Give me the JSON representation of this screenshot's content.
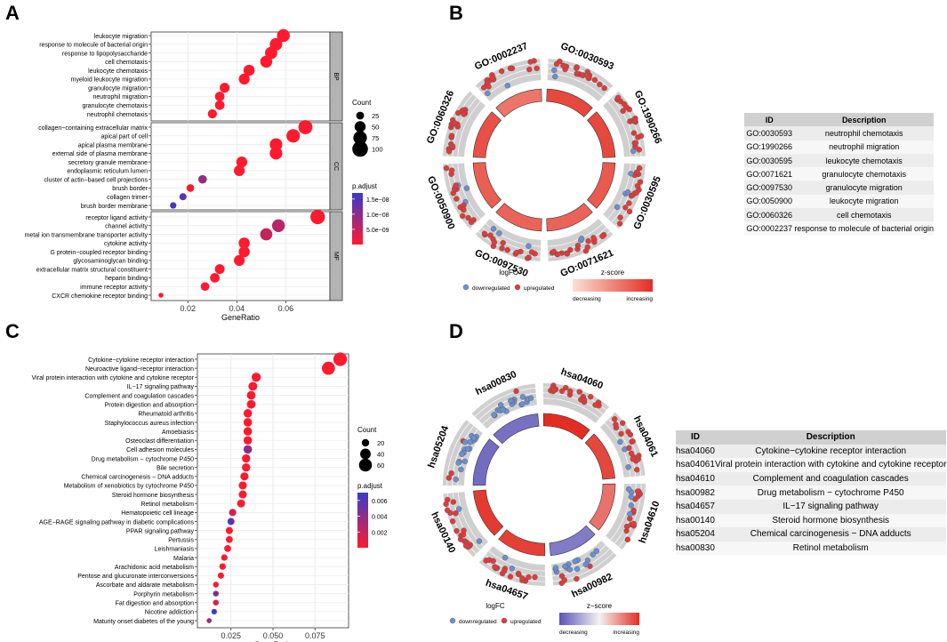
{
  "panels": {
    "A": "A",
    "B": "B",
    "C": "C",
    "D": "D"
  },
  "chart_data": [
    {
      "panel": "A",
      "type": "scatter",
      "subtype": "dotplot",
      "xlabel": "GeneRatio",
      "xlim": [
        0.005,
        0.078
      ],
      "xticks": [
        0.02,
        0.04,
        0.06
      ],
      "xtick_labels": [
        "0.02",
        "0.04",
        "0.06"
      ],
      "facets": [
        {
          "strip": "BP",
          "terms": [
            {
              "label": "leukocyte migration",
              "x": 0.059,
              "count": 68,
              "padj": 1e-13
            },
            {
              "label": "response to molecule of bacterial origin",
              "x": 0.056,
              "count": 64,
              "padj": 1e-13
            },
            {
              "label": "response to lipopolysaccharide",
              "x": 0.054,
              "count": 62,
              "padj": 1e-13
            },
            {
              "label": "cell chemotaxis",
              "x": 0.052,
              "count": 59,
              "padj": 1e-13
            },
            {
              "label": "leukocyte chemotaxis",
              "x": 0.045,
              "count": 51,
              "padj": 1e-13
            },
            {
              "label": "myeloid leukocyte migration",
              "x": 0.043,
              "count": 49,
              "padj": 1e-13
            },
            {
              "label": "granulocyte migration",
              "x": 0.035,
              "count": 40,
              "padj": 1e-13
            },
            {
              "label": "neutrophil migration",
              "x": 0.033,
              "count": 37,
              "padj": 1e-13
            },
            {
              "label": "granulocyte chemotaxis",
              "x": 0.033,
              "count": 37,
              "padj": 1e-13
            },
            {
              "label": "neutrophil chemotaxis",
              "x": 0.03,
              "count": 34,
              "padj": 1e-13
            }
          ]
        },
        {
          "strip": "CC",
          "terms": [
            {
              "label": "collagen−containing extracellular matrix",
              "x": 0.068,
              "count": 80,
              "padj": 1e-12
            },
            {
              "label": "apical part of cell",
              "x": 0.063,
              "count": 74,
              "padj": 1e-12
            },
            {
              "label": "apical plasma membrane",
              "x": 0.056,
              "count": 65,
              "padj": 1e-12
            },
            {
              "label": "external side of plasma membrane",
              "x": 0.056,
              "count": 65,
              "padj": 1e-12
            },
            {
              "label": "secretory granule membrane",
              "x": 0.042,
              "count": 49,
              "padj": 1e-11
            },
            {
              "label": "endoplasmic reticulum lumen",
              "x": 0.041,
              "count": 48,
              "padj": 1e-11
            },
            {
              "label": "cluster of actin−based cell projections",
              "x": 0.026,
              "count": 30,
              "padj": 9e-09
            },
            {
              "label": "brush border",
              "x": 0.021,
              "count": 24,
              "padj": 1e-10
            },
            {
              "label": "collagen trimer",
              "x": 0.018,
              "count": 21,
              "padj": 1.4e-08
            },
            {
              "label": "brush border membrane",
              "x": 0.014,
              "count": 17,
              "padj": 1.6e-08
            }
          ]
        },
        {
          "strip": "MF",
          "terms": [
            {
              "label": "receptor ligand activity",
              "x": 0.073,
              "count": 86,
              "padj": 1e-12
            },
            {
              "label": "channel activity",
              "x": 0.057,
              "count": 67,
              "padj": 6e-09
            },
            {
              "label": "metal ion transmembrane transporter activity",
              "x": 0.052,
              "count": 61,
              "padj": 5e-09
            },
            {
              "label": "cytokine activity",
              "x": 0.043,
              "count": 50,
              "padj": 1e-12
            },
            {
              "label": "G protein−coupled receptor binding",
              "x": 0.043,
              "count": 50,
              "padj": 1e-12
            },
            {
              "label": "glycosaminoglycan binding",
              "x": 0.041,
              "count": 48,
              "padj": 1e-12
            },
            {
              "label": "extracellular matrix structural constituent",
              "x": 0.033,
              "count": 39,
              "padj": 1e-12
            },
            {
              "label": "heparin binding",
              "x": 0.031,
              "count": 37,
              "padj": 1e-12
            },
            {
              "label": "immune receptor activity",
              "x": 0.027,
              "count": 31,
              "padj": 1e-12
            },
            {
              "label": "CXCR chemokine receptor binding",
              "x": 0.009,
              "count": 10,
              "padj": 1e-12
            }
          ]
        }
      ],
      "legend_size": {
        "title": "Count",
        "values": [
          25,
          50,
          75,
          100
        ],
        "labels": [
          "25",
          "50",
          "75",
          "100"
        ]
      },
      "legend_color": {
        "title": "p.adjust",
        "range": [
          0,
          1.7e-08
        ],
        "ticks": [
          1.5e-08,
          1e-08,
          5e-09
        ],
        "labels": [
          "1.5e−08",
          "1.0e−08",
          "5.0e−09"
        ],
        "low_color": "#ff1a2e",
        "high_color": "#3a3acb"
      }
    },
    {
      "panel": "B",
      "type": "circle",
      "subtype": "GOCircle",
      "sectors": [
        {
          "id": "GO:0030593",
          "label": "GO:0030593",
          "zscore": 0.85
        },
        {
          "id": "GO:1990266",
          "label": "GO:1990266",
          "zscore": 0.85
        },
        {
          "id": "GO:0030595",
          "label": "GO:0030595",
          "zscore": 0.75
        },
        {
          "id": "GO:0071621",
          "label": "GO:0071621",
          "zscore": 0.7
        },
        {
          "id": "GO:0097530",
          "label": "GO:0097530",
          "zscore": 0.7
        },
        {
          "id": "GO:0050900",
          "label": "GO:0050900",
          "zscore": 0.72
        },
        {
          "id": "GO:0060326",
          "label": "GO:0060326",
          "zscore": 0.8
        },
        {
          "id": "GO:0002237",
          "label": "GO:0002237",
          "zscore": 0.6
        }
      ],
      "legend_logfc": {
        "title": "logFC",
        "items": [
          "downregulated",
          "upregulated"
        ],
        "colors": [
          "#6b8fd0",
          "#e23a3a"
        ]
      },
      "legend_zscore": {
        "title": "z-score",
        "low_label": "decreasing",
        "high_label": "increasing",
        "low_color": "#fbe0d6",
        "high_color": "#e42d22"
      }
    },
    {
      "panel": "C",
      "type": "scatter",
      "subtype": "dotplot",
      "xlabel": "GeneRatio",
      "xlim": [
        0.005,
        0.095
      ],
      "xticks": [
        0.025,
        0.05,
        0.075
      ],
      "xtick_labels": [
        "0.025",
        "0.050",
        "0.075"
      ],
      "terms": [
        {
          "label": "Cytokine−cytokine receptor interaction",
          "x": 0.09,
          "count": 66,
          "padj": 1e-08
        },
        {
          "label": "Neuroactive ligand−receptor interaction",
          "x": 0.083,
          "count": 61,
          "padj": 1e-05
        },
        {
          "label": "Viral protein interaction with cytokine and cytokine receptor",
          "x": 0.04,
          "count": 30,
          "padj": 1e-06
        },
        {
          "label": "IL−17 signaling pathway",
          "x": 0.038,
          "count": 28,
          "padj": 1e-06
        },
        {
          "label": "Complement and coagulation cascades",
          "x": 0.037,
          "count": 27,
          "padj": 1e-06
        },
        {
          "label": "Protein digestion and absorption",
          "x": 0.037,
          "count": 27,
          "padj": 1e-06
        },
        {
          "label": "Rheumatoid arthritis",
          "x": 0.035,
          "count": 26,
          "padj": 1e-06
        },
        {
          "label": "Staphylococcus aureus infection",
          "x": 0.035,
          "count": 26,
          "padj": 1e-06
        },
        {
          "label": "Amoebiasis",
          "x": 0.035,
          "count": 26,
          "padj": 1e-06
        },
        {
          "label": "Osteoclast differentiation",
          "x": 0.035,
          "count": 26,
          "padj": 1e-06
        },
        {
          "label": "Cell adhesion molecules",
          "x": 0.035,
          "count": 26,
          "padj": 0.004
        },
        {
          "label": "Drug metabolism − cytochrome P450",
          "x": 0.034,
          "count": 25,
          "padj": 1e-06
        },
        {
          "label": "Bile secretion",
          "x": 0.034,
          "count": 25,
          "padj": 1e-06
        },
        {
          "label": "Chemical carcinogenesis − DNA adducts",
          "x": 0.033,
          "count": 24,
          "padj": 1e-06
        },
        {
          "label": "Metabolism of xenobiotics by cytochrome P450",
          "x": 0.032,
          "count": 24,
          "padj": 1e-06
        },
        {
          "label": "Steroid hormone biosynthesis",
          "x": 0.032,
          "count": 23,
          "padj": 1e-06
        },
        {
          "label": "Retinol metabolism",
          "x": 0.031,
          "count": 23,
          "padj": 1e-06
        },
        {
          "label": "Hematopoietic cell lineage",
          "x": 0.026,
          "count": 19,
          "padj": 0.0015
        },
        {
          "label": "AGE−RAGE signaling pathway in diabetic complications",
          "x": 0.025,
          "count": 18,
          "padj": 0.006
        },
        {
          "label": "PPAR signaling pathway",
          "x": 0.024,
          "count": 18,
          "padj": 1e-06
        },
        {
          "label": "Pertussis",
          "x": 0.024,
          "count": 17,
          "padj": 1e-06
        },
        {
          "label": "Leishmaniasis",
          "x": 0.023,
          "count": 17,
          "padj": 1e-06
        },
        {
          "label": "Malaria",
          "x": 0.021,
          "count": 15,
          "padj": 1e-06
        },
        {
          "label": "Arachidonic acid metabolism",
          "x": 0.02,
          "count": 15,
          "padj": 1e-06
        },
        {
          "label": "Pentose and glucuronate interconversions",
          "x": 0.019,
          "count": 14,
          "padj": 1e-06
        },
        {
          "label": "Ascorbate and aldarate metabolism",
          "x": 0.016,
          "count": 12,
          "padj": 1e-06
        },
        {
          "label": "Porphyrin metabolism",
          "x": 0.016,
          "count": 12,
          "padj": 0.0045
        },
        {
          "label": "Fat digestion and absorption",
          "x": 0.016,
          "count": 12,
          "padj": 0.0015
        },
        {
          "label": "Nicotine addiction",
          "x": 0.015,
          "count": 11,
          "padj": 0.0065
        },
        {
          "label": "Maturity onset diabetes of the young",
          "x": 0.012,
          "count": 9,
          "padj": 0.0035
        }
      ],
      "legend_size": {
        "title": "Count",
        "values": [
          20,
          40,
          60
        ],
        "labels": [
          "20",
          "40",
          "60"
        ]
      },
      "legend_color": {
        "title": "p.adjust",
        "range": [
          0,
          0.007
        ],
        "ticks": [
          0.006,
          0.004,
          0.002
        ],
        "labels": [
          "0.006",
          "0.004",
          "0.002"
        ],
        "low_color": "#ff1a2e",
        "high_color": "#3a3acb"
      }
    },
    {
      "panel": "D",
      "type": "circle",
      "subtype": "GOCircle",
      "sectors": [
        {
          "id": "hsa04060",
          "label": "hsa04060",
          "zscore": 1.0
        },
        {
          "id": "hsa04061",
          "label": "hsa04061",
          "zscore": 0.8
        },
        {
          "id": "hsa04610",
          "label": "hsa04610",
          "zscore": 0.45
        },
        {
          "id": "hsa00982",
          "label": "hsa00982",
          "zscore": -0.6
        },
        {
          "id": "hsa04657",
          "label": "hsa04657",
          "zscore": 0.85
        },
        {
          "id": "hsa00140",
          "label": "hsa00140",
          "zscore": 0.9
        },
        {
          "id": "hsa05204",
          "label": "hsa05204",
          "zscore": -0.75
        },
        {
          "id": "hsa00830",
          "label": "hsa00830",
          "zscore": -0.7
        }
      ],
      "legend_logfc": {
        "title": "logFC",
        "items": [
          "downregulated",
          "upregulated"
        ],
        "colors": [
          "#6b8fd0",
          "#e23a3a"
        ]
      },
      "legend_zscore": {
        "title": "z−score",
        "low_label": "decreasing",
        "high_label": "increasing",
        "low_color": "#5b52b8",
        "mid_color": "#f2f2f2",
        "high_color": "#e42d22"
      }
    }
  ],
  "tableB": {
    "headers": [
      "ID",
      "Description"
    ],
    "rows": [
      [
        "GO:0030593",
        "neutrophil chemotaxis"
      ],
      [
        "GO:1990266",
        "neutrophil migration"
      ],
      [
        "GO:0030595",
        "leukocyte chemotaxis"
      ],
      [
        "GO:0071621",
        "granulocyte chemotaxis"
      ],
      [
        "GO:0097530",
        "granulocyte migration"
      ],
      [
        "GO:0050900",
        "leukocyte migration"
      ],
      [
        "GO:0060326",
        "cell chemotaxis"
      ],
      [
        "GO:0002237",
        "response to molecule of bacterial origin"
      ]
    ]
  },
  "tableD": {
    "headers": [
      "ID",
      "Description"
    ],
    "rows": [
      [
        "hsa04060",
        "Cytokine−cytokine receptor interaction"
      ],
      [
        "hsa04061",
        "Viral protein interaction with cytokine and cytokine receptor"
      ],
      [
        "hsa04610",
        "Complement and coagulation cascades"
      ],
      [
        "hsa00982",
        "Drug metabolism − cytochrome P450"
      ],
      [
        "hsa04657",
        "IL−17 signaling pathway"
      ],
      [
        "hsa00140",
        "Steroid hormone biosynthesis"
      ],
      [
        "hsa05204",
        "Chemical carcinogenesis − DNA adducts"
      ],
      [
        "hsa00830",
        "Retinol metabolism"
      ]
    ]
  }
}
